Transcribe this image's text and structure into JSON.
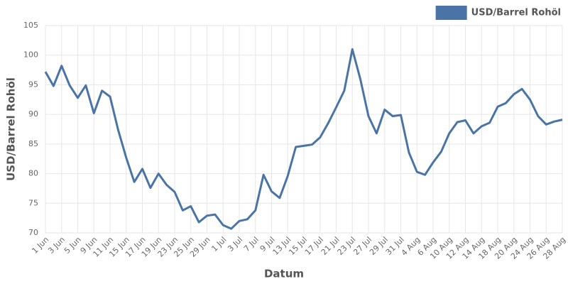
{
  "chart_data": {
    "type": "line",
    "x_label": "Datum",
    "y_label": "USD/Barrel Rohöl",
    "categories": [
      "1 Jun",
      null,
      "3 Jun",
      null,
      "5 Jun",
      null,
      "9 Jun",
      null,
      "11 Jun",
      null,
      "15 Jun",
      null,
      "17 Jun",
      null,
      "19 Jun",
      null,
      "23 Jun",
      null,
      "25 Jun",
      null,
      "29 Jun",
      null,
      "1 Jul",
      null,
      "3 Jul",
      null,
      "7 Jul",
      null,
      "9 Jul",
      null,
      "13 Jul",
      null,
      "15 Jul",
      null,
      "17 Jul",
      null,
      "21 Jul",
      null,
      "23 Jul",
      null,
      "27 Jul",
      null,
      "29 Jul",
      null,
      "31 Jul",
      null,
      "4 Aug",
      null,
      "6 Aug",
      null,
      "10 Aug",
      null,
      "12 Aug",
      null,
      "14 Aug",
      null,
      "18 Aug",
      null,
      "20 Aug",
      null,
      "24 Aug",
      null,
      "26 Aug",
      null,
      "28 Aug"
    ],
    "series": [
      {
        "name": "USD/Barrel Rohöl",
        "color": "#4a74a5",
        "values": [
          97.2,
          94.8,
          98.2,
          94.9,
          92.8,
          94.9,
          90.2,
          94.0,
          93.0,
          87.4,
          82.7,
          78.6,
          80.8,
          77.6,
          80.0,
          78.1,
          76.9,
          73.8,
          74.5,
          71.8,
          72.9,
          73.1,
          71.3,
          70.7,
          72.0,
          72.3,
          73.8,
          79.8,
          77.0,
          75.9,
          79.6,
          84.5,
          84.7,
          84.9,
          86.1,
          88.5,
          91.2,
          94.0,
          101.0,
          95.9,
          89.7,
          86.8,
          90.8,
          89.7,
          89.9,
          83.6,
          80.3,
          79.8,
          81.9,
          83.7,
          86.8,
          88.7,
          89.0,
          86.8,
          88.0,
          88.6,
          91.3,
          91.9,
          93.4,
          94.3,
          92.5,
          89.7,
          88.3,
          88.8,
          89.1
        ]
      }
    ],
    "ylim": [
      70,
      105
    ],
    "yticks": [
      70,
      75,
      80,
      85,
      90,
      95,
      100,
      105
    ],
    "grid": true,
    "legend": "top-right"
  }
}
